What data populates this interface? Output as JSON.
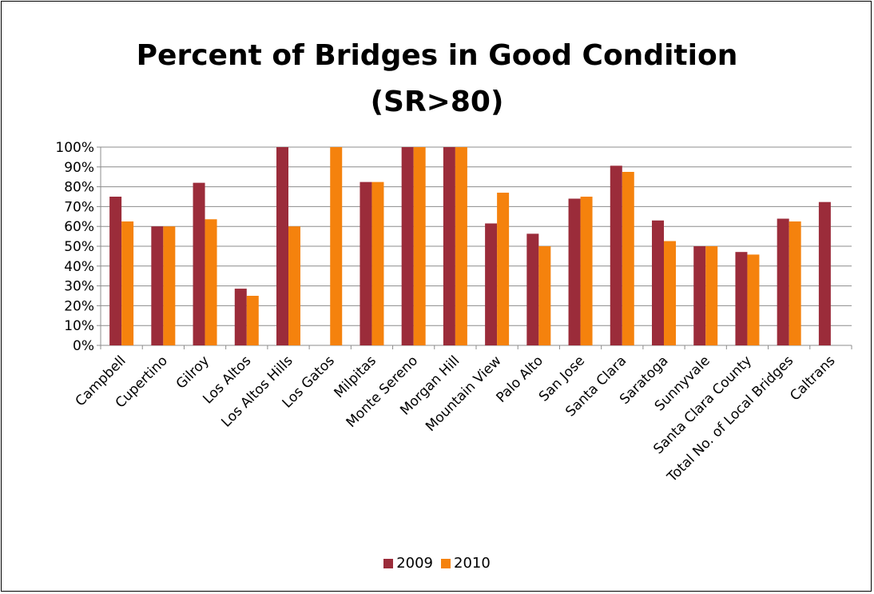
{
  "colors": {
    "s2009": "#9B2C3A",
    "s2010": "#F5820D",
    "grid": "#8C8C8C",
    "axis": "#8C8C8C"
  },
  "chart_data": {
    "type": "bar",
    "title_line1": "Percent of Bridges in Good Condition",
    "title_line2": "(SR>80)",
    "xlabel": "",
    "ylabel": "",
    "ylim": [
      0,
      100
    ],
    "yticks": [
      "0%",
      "10%",
      "20%",
      "30%",
      "40%",
      "50%",
      "60%",
      "70%",
      "80%",
      "90%",
      "100%"
    ],
    "grid": true,
    "legend_position": "bottom",
    "categories": [
      "Campbell",
      "Cupertino",
      "Gilroy",
      "Los Altos",
      "Los Altos Hills",
      "Los Gatos",
      "Milpitas",
      "Monte Sereno",
      "Morgan Hill",
      "Mountain View",
      "Palo Alto",
      "San Jose",
      "Santa Clara",
      "Saratoga",
      "Sunnyvale",
      "Santa Clara County",
      "Total No. of Local Bridges",
      "Caltrans"
    ],
    "series": [
      {
        "name": "2009",
        "values": [
          75,
          60,
          82,
          28.6,
          100,
          0,
          82.4,
          100,
          100,
          61.5,
          56.3,
          74,
          90.6,
          63,
          50,
          47.1,
          63.9,
          72.3
        ]
      },
      {
        "name": "2010",
        "values": [
          62.5,
          60,
          63.6,
          25,
          60,
          100,
          82.4,
          100,
          100,
          77,
          50,
          75,
          87.5,
          52.6,
          50,
          45.8,
          62.5,
          null
        ]
      }
    ]
  }
}
